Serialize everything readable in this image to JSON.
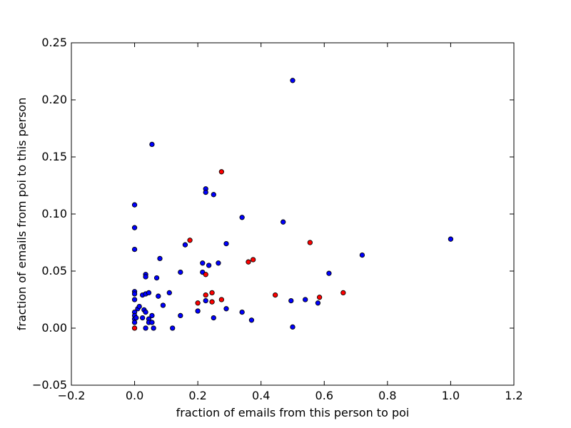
{
  "chart_data": {
    "type": "scatter",
    "title": "",
    "xlabel": "fraction of emails from this person to poi",
    "ylabel": "fraction of emails from poi to this person",
    "xlim": [
      -0.2,
      1.2
    ],
    "ylim": [
      -0.05,
      0.25
    ],
    "xticks": [
      -0.2,
      0.0,
      0.2,
      0.4,
      0.6,
      0.8,
      1.0,
      1.2
    ],
    "xtick_labels": [
      "−0.2",
      "0.0",
      "0.2",
      "0.4",
      "0.6",
      "0.8",
      "1.0",
      "1.2"
    ],
    "yticks": [
      -0.05,
      0.0,
      0.05,
      0.1,
      0.15,
      0.2,
      0.25
    ],
    "ytick_labels": [
      "−0.05",
      "0.00",
      "0.05",
      "0.10",
      "0.15",
      "0.20",
      "0.25"
    ],
    "grid": false,
    "legend": "none",
    "series": [
      {
        "color": "#0000ff",
        "points": [
          [
            0.5,
            0.217
          ],
          [
            0.055,
            0.161
          ],
          [
            0.0,
            0.108
          ],
          [
            0.225,
            0.122
          ],
          [
            0.225,
            0.119
          ],
          [
            0.25,
            0.117
          ],
          [
            0.0,
            0.088
          ],
          [
            0.34,
            0.097
          ],
          [
            0.47,
            0.093
          ],
          [
            1.0,
            0.078
          ],
          [
            0.0,
            0.069
          ],
          [
            0.16,
            0.073
          ],
          [
            0.29,
            0.074
          ],
          [
            0.72,
            0.064
          ],
          [
            0.08,
            0.061
          ],
          [
            0.215,
            0.057
          ],
          [
            0.235,
            0.055
          ],
          [
            0.265,
            0.057
          ],
          [
            0.145,
            0.049
          ],
          [
            0.215,
            0.049
          ],
          [
            0.615,
            0.048
          ],
          [
            0.035,
            0.047
          ],
          [
            0.035,
            0.045
          ],
          [
            0.07,
            0.044
          ],
          [
            0.0,
            0.032
          ],
          [
            0.0,
            0.03
          ],
          [
            0.025,
            0.029
          ],
          [
            0.035,
            0.03
          ],
          [
            0.045,
            0.031
          ],
          [
            0.075,
            0.028
          ],
          [
            0.11,
            0.031
          ],
          [
            0.0,
            0.025
          ],
          [
            0.225,
            0.024
          ],
          [
            0.495,
            0.024
          ],
          [
            0.54,
            0.025
          ],
          [
            0.58,
            0.022
          ],
          [
            0.09,
            0.02
          ],
          [
            0.01,
            0.017
          ],
          [
            0.015,
            0.019
          ],
          [
            0.03,
            0.016
          ],
          [
            0.035,
            0.014
          ],
          [
            0.29,
            0.017
          ],
          [
            0.0,
            0.014
          ],
          [
            0.0,
            0.011
          ],
          [
            0.2,
            0.015
          ],
          [
            0.34,
            0.014
          ],
          [
            0.055,
            0.011
          ],
          [
            0.145,
            0.011
          ],
          [
            0.0,
            0.008
          ],
          [
            0.005,
            0.009
          ],
          [
            0.025,
            0.009
          ],
          [
            0.045,
            0.008
          ],
          [
            0.25,
            0.009
          ],
          [
            0.37,
            0.007
          ],
          [
            0.0,
            0.005
          ],
          [
            0.045,
            0.005
          ],
          [
            0.055,
            0.005
          ],
          [
            0.035,
            0.0
          ],
          [
            0.06,
            0.0
          ],
          [
            0.12,
            0.0
          ],
          [
            0.5,
            0.001
          ]
        ]
      },
      {
        "color": "#ff0000",
        "points": [
          [
            0.275,
            0.137
          ],
          [
            0.175,
            0.077
          ],
          [
            0.555,
            0.075
          ],
          [
            0.36,
            0.058
          ],
          [
            0.375,
            0.06
          ],
          [
            0.225,
            0.047
          ],
          [
            0.445,
            0.029
          ],
          [
            0.225,
            0.029
          ],
          [
            0.245,
            0.031
          ],
          [
            0.275,
            0.025
          ],
          [
            0.245,
            0.023
          ],
          [
            0.2,
            0.022
          ],
          [
            0.585,
            0.027
          ],
          [
            0.66,
            0.031
          ],
          [
            0.0,
            0.0
          ]
        ]
      }
    ]
  }
}
